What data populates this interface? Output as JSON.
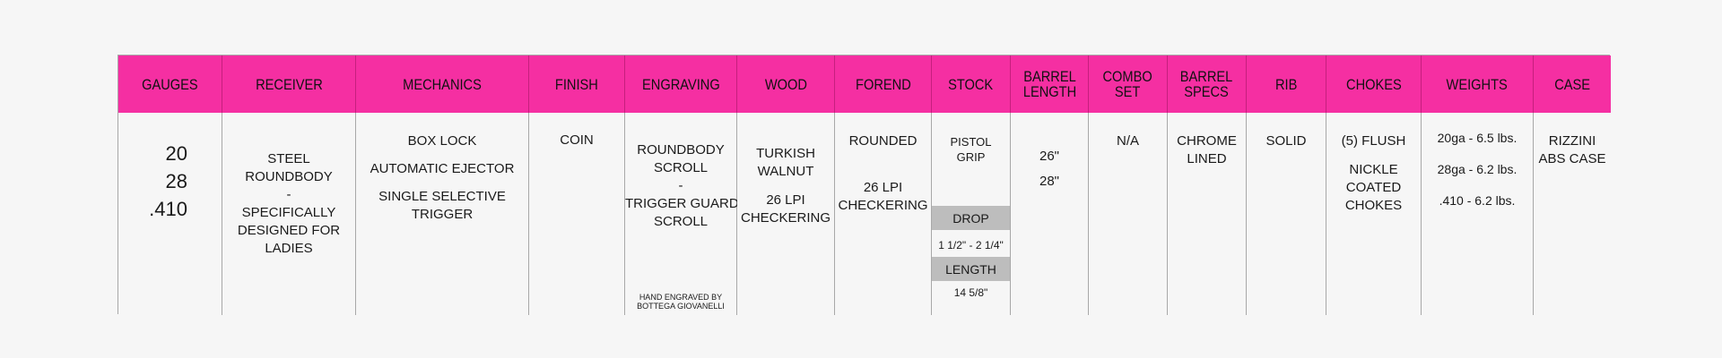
{
  "headers": {
    "gauges": [
      "GAUGES"
    ],
    "receiver": [
      "RECEIVER"
    ],
    "mechanics": [
      "MECHANICS"
    ],
    "finish": [
      "FINISH"
    ],
    "engraving": [
      "ENGRAVING"
    ],
    "wood": [
      "WOOD"
    ],
    "forend": [
      "FOREND"
    ],
    "stock": [
      "STOCK"
    ],
    "barrel_length": [
      "BARREL",
      "LENGTH"
    ],
    "combo_set": [
      "COMBO",
      "SET"
    ],
    "barrel_specs": [
      "BARREL",
      "SPECS"
    ],
    "rib": [
      "RIB"
    ],
    "chokes": [
      "CHOKES"
    ],
    "weights": [
      "WEIGHTS"
    ],
    "case": [
      "CASE"
    ]
  },
  "body": {
    "gauges": [
      "20",
      "28",
      ".410"
    ],
    "receiver": [
      "STEEL",
      "ROUNDBODY",
      "-",
      "SPECIFICALLY",
      "DESIGNED FOR",
      "LADIES"
    ],
    "mechanics": [
      "BOX LOCK",
      "AUTOMATIC EJECTOR",
      "SINGLE SELECTIVE",
      "TRIGGER"
    ],
    "finish": [
      "COIN"
    ],
    "engraving": [
      "ROUNDBODY",
      "SCROLL",
      "-",
      "TRIGGER GUARD",
      "SCROLL"
    ],
    "engraving_note": [
      "HAND ENGRAVED BY",
      "BOTTEGA GIOVANELLI"
    ],
    "wood": [
      "TURKISH",
      "WALNUT",
      "26 LPI",
      "CHECKERING"
    ],
    "forend": [
      "ROUNDED",
      "26 LPI",
      "CHECKERING"
    ],
    "stock": {
      "grip": [
        "PISTOL",
        "GRIP"
      ],
      "drop_label": "DROP",
      "drop_value": "1 1/2\" - 2 1/4\"",
      "length_label": "LENGTH",
      "length_value": "14 5/8\""
    },
    "barrel_length": [
      "26\"",
      "28\""
    ],
    "combo_set": [
      "N/A"
    ],
    "barrel_specs": [
      "CHROME",
      "LINED"
    ],
    "rib": [
      "SOLID"
    ],
    "chokes": [
      "(5) FLUSH",
      "NICKLE",
      "COATED",
      "CHOKES"
    ],
    "weights": [
      "20ga  - 6.5 lbs.",
      "28ga  - 6.2 lbs.",
      ".410  - 6.2 lbs."
    ],
    "case": [
      "RIZZINI",
      "ABS CASE"
    ]
  }
}
